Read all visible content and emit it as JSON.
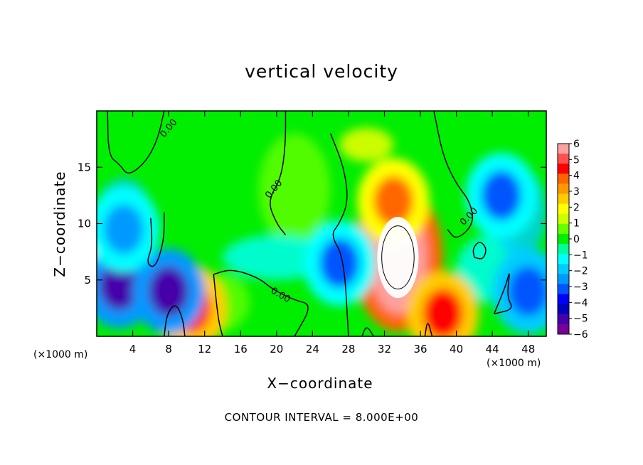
{
  "chart_data": {
    "type": "heatmap",
    "title": "vertical velocity",
    "xlabel": "X−coordinate",
    "ylabel": "Z−coordinate",
    "x_unit_left": "(×1000 m)",
    "x_unit_right": "(×1000 m)",
    "footer": "CONTOUR INTERVAL = 8.000E+00",
    "xlim": [
      0,
      50
    ],
    "ylim": [
      0,
      20
    ],
    "x_ticks": [
      4,
      8,
      12,
      16,
      20,
      24,
      28,
      32,
      36,
      40,
      44,
      48
    ],
    "y_ticks": [
      5,
      10,
      15
    ],
    "colorbar": {
      "ticks": [
        6,
        5,
        4,
        3,
        2,
        1,
        0,
        "−1",
        "−2",
        "−3",
        "−4",
        "−5",
        "−6"
      ],
      "colors": [
        "#ffa0a0",
        "#ff5050",
        "#ff0000",
        "#ff6600",
        "#ff9900",
        "#ffcc00",
        "#ffff00",
        "#ccff00",
        "#66ff00",
        "#00ee00",
        "#00ff99",
        "#00ffff",
        "#00ccff",
        "#0099ff",
        "#0055ff",
        "#0000ff",
        "#0000bb",
        "#4400aa",
        "#770099"
      ]
    },
    "contour_labels": [
      "0.00",
      "0.00",
      "0.00",
      "0.00"
    ],
    "features": [
      {
        "name": "updraft core",
        "x": 33.5,
        "z": 7,
        "w": 7.5
      },
      {
        "name": "upper updraft",
        "x": 33,
        "z": 12,
        "w": 4
      },
      {
        "name": "low updraft",
        "x": 38.5,
        "z": 2,
        "w": 5
      },
      {
        "name": "low updraft",
        "x": 10.5,
        "z": 2.5,
        "w": 5
      },
      {
        "name": "low updraft",
        "x": 2,
        "z": 5.5,
        "w": 5
      },
      {
        "name": "left downdraft",
        "x": 2.5,
        "z": 4.5,
        "w": -5
      },
      {
        "name": "left downdraft",
        "x": 8,
        "z": 4,
        "w": -5
      },
      {
        "name": "right downdraft",
        "x": 48,
        "z": 4,
        "w": -3.5
      },
      {
        "name": "upper right downdraft",
        "x": 45,
        "z": 12.5,
        "w": -3
      },
      {
        "name": "upper left downdraft",
        "x": 3,
        "z": 9.5,
        "w": -2.5
      },
      {
        "name": "mid downdraft",
        "x": 27,
        "z": 6.5,
        "w": -3
      }
    ]
  }
}
